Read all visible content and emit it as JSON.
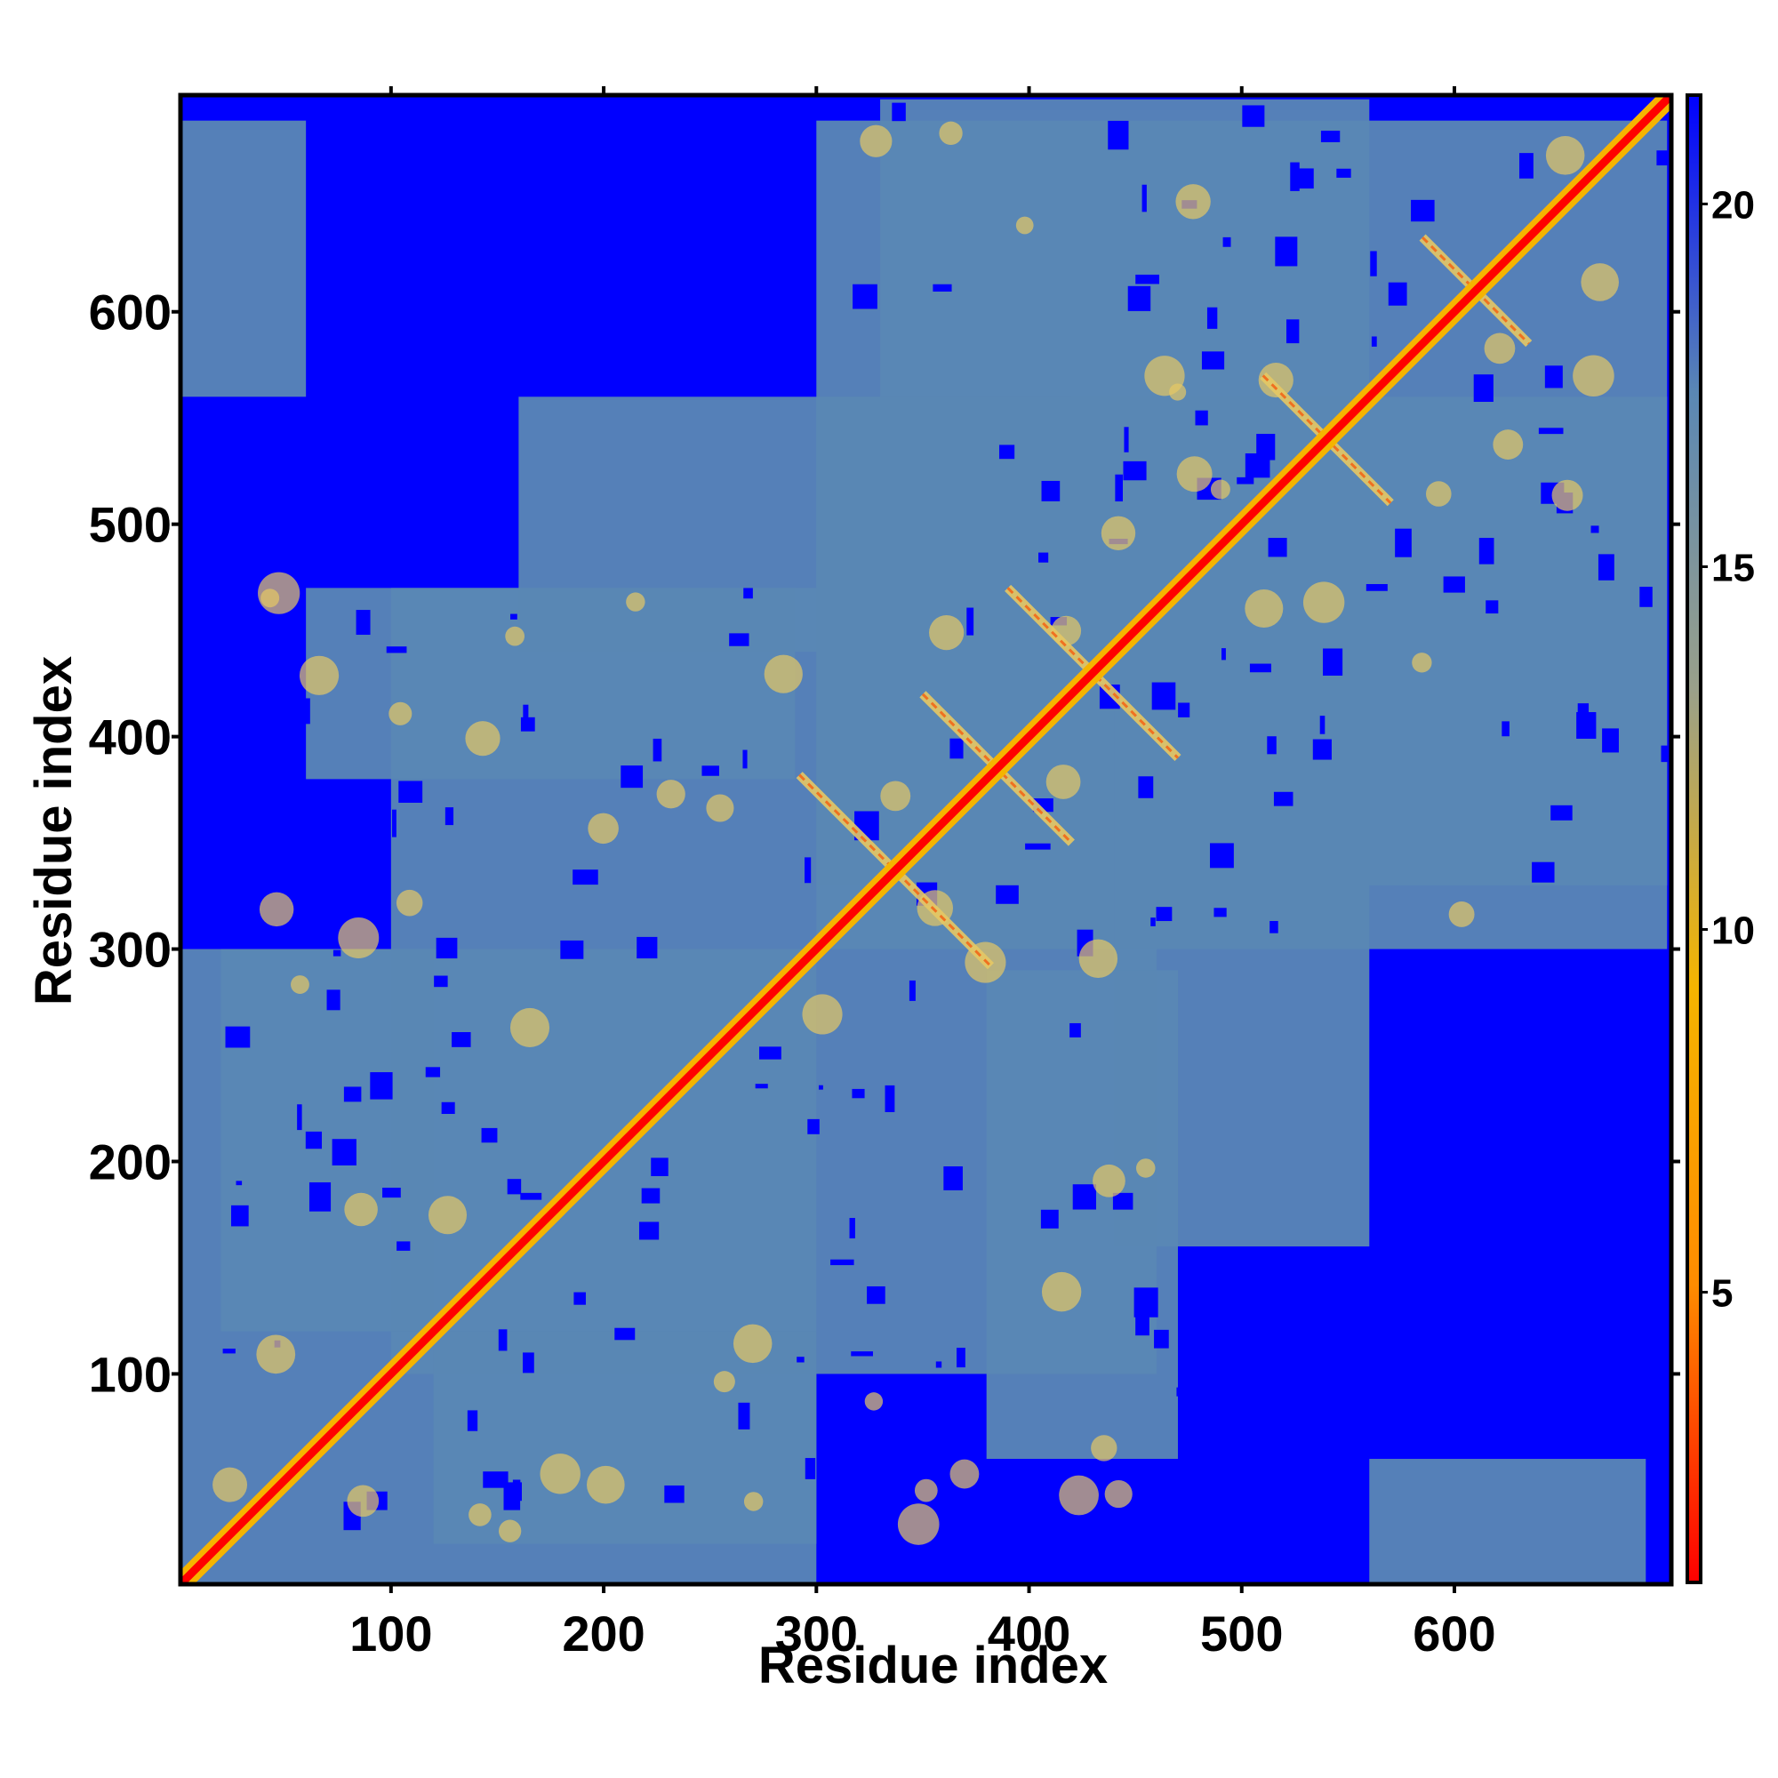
{
  "chart_data": {
    "type": "heatmap",
    "title": "",
    "xlabel": "Residue index",
    "ylabel": "Residue index",
    "xlim": [
      1,
      702
    ],
    "ylim": [
      1,
      702
    ],
    "x_ticks": [
      100,
      200,
      300,
      400,
      500,
      600
    ],
    "y_ticks": [
      100,
      200,
      300,
      400,
      500,
      600
    ],
    "colorbar": {
      "ticks": [
        5,
        10,
        15,
        20
      ],
      "range": [
        1,
        21.5
      ],
      "colors": [
        "#ff0000",
        "#ff8c00",
        "#f5b400",
        "#9aa08a",
        "#5a87b4",
        "#0000ff"
      ]
    },
    "colors": {
      "background_far": "#0000ff",
      "mid_distance": "#5a87b4",
      "near": "#e6c864",
      "contact": "#ff0000"
    },
    "structure": {
      "domains": [
        [
          1,
          300
        ],
        [
          300,
          702
        ]
      ],
      "far_blocks": [
        [
          [
            1,
            350
          ],
          [
            480,
            702
          ]
        ],
        [
          [
            470,
            702
          ],
          [
            1,
            300
          ]
        ]
      ],
      "antiparallel_strands": [
        {
          "center": [
            337,
            337
          ],
          "span": 90
        },
        {
          "center": [
            385,
            385
          ],
          "span": 70
        },
        {
          "center": [
            430,
            430
          ],
          "span": 80
        },
        {
          "center": [
            540,
            540
          ],
          "span": 60
        },
        {
          "center": [
            610,
            610
          ],
          "span": 50
        }
      ]
    }
  }
}
